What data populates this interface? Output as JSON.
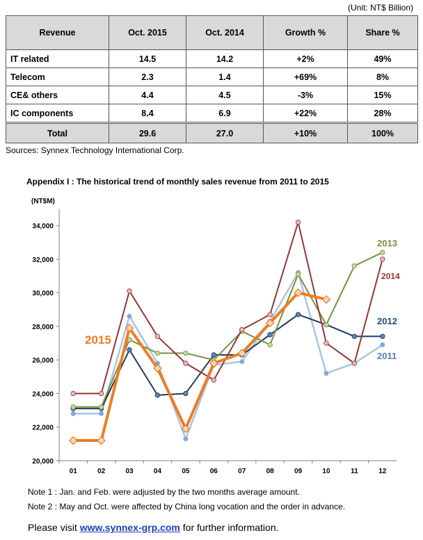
{
  "unit": "(Unit: NT$ Billion)",
  "table": {
    "headers": [
      "Revenue",
      "Oct. 2015",
      "Oct. 2014",
      "Growth %",
      "Share %"
    ],
    "rows": [
      {
        "cat": "IT related",
        "oct2015": "14.5",
        "oct2014": "14.2",
        "growth": "+2%",
        "share": "49%"
      },
      {
        "cat": "Telecom",
        "oct2015": "2.3",
        "oct2014": "1.4",
        "growth": "+69%",
        "share": "8%"
      },
      {
        "cat": "CE& others",
        "oct2015": "4.4",
        "oct2014": "4.5",
        "growth": "-3%",
        "share": "15%"
      },
      {
        "cat": "IC components",
        "oct2015": "8.4",
        "oct2014": "6.9",
        "growth": "+22%",
        "share": "28%"
      }
    ],
    "total": {
      "cat": "Total",
      "oct2015": "29.6",
      "oct2014": "27.0",
      "growth": "+10%",
      "share": "100%"
    }
  },
  "sources": "Sources: Synnex Technology International Corp.",
  "appendix_title": "Appendix I : The historical trend of monthly sales revenue from 2011 to 2015",
  "notes": [
    "Note 1 : Jan. and Feb. were adjusted by the two months average amount.",
    "Note 2 : May and Oct. were affected by China long vocation and the order in advance."
  ],
  "visit": {
    "pre": "Please visit",
    "link": "www.synnex-grp.com",
    "post": "for further information."
  },
  "chart_data": {
    "type": "line",
    "ylabel": "(NT$M)",
    "x": [
      "01",
      "02",
      "03",
      "04",
      "05",
      "06",
      "07",
      "08",
      "09",
      "10",
      "11",
      "12"
    ],
    "ylim": [
      20000,
      35000
    ],
    "yticks": [
      "20,000",
      "22,000",
      "24,000",
      "26,000",
      "28,000",
      "30,000",
      "32,000",
      "34,000"
    ],
    "grid": false,
    "series": [
      {
        "name": "2011",
        "color": "#a9c4e6",
        "marker": "#7ea6d8",
        "width": 2.5,
        "values": [
          22800,
          22800,
          28600,
          25800,
          21300,
          25700,
          25900,
          28300,
          31200,
          25200,
          25800,
          26900
        ]
      },
      {
        "name": "2012",
        "color": "#1f3a5f",
        "marker": "#5b82b8",
        "width": 2,
        "values": [
          23100,
          23100,
          26600,
          23900,
          24000,
          26300,
          26300,
          27500,
          28700,
          28100,
          27400,
          27400
        ]
      },
      {
        "name": "2013",
        "color": "#76923c",
        "marker": "#c4d79b",
        "width": 2,
        "values": [
          23200,
          23200,
          27200,
          26400,
          26400,
          26000,
          27700,
          26900,
          31100,
          28100,
          31600,
          32400
        ]
      },
      {
        "name": "2014",
        "color": "#943634",
        "marker": "#e6b8b7",
        "width": 2,
        "values": [
          24000,
          24000,
          30100,
          27400,
          25800,
          24800,
          27800,
          28700,
          34200,
          27000,
          25800,
          32000
        ]
      },
      {
        "name": "2015",
        "color": "#f07c1e",
        "marker": "#fcd5b4",
        "width": 4,
        "values": [
          21200,
          21200,
          27900,
          25500,
          21900,
          25800,
          26400,
          28200,
          30000,
          29600,
          null,
          null
        ]
      }
    ],
    "labels": [
      {
        "series": "2013",
        "text": "2013",
        "color": "#76923c"
      },
      {
        "series": "2014",
        "text": "2014",
        "color": "#943634"
      },
      {
        "series": "2012",
        "text": "2012",
        "color": "#1f4e79"
      },
      {
        "series": "2011",
        "text": "2011",
        "color": "#4f81bd"
      },
      {
        "series": "2015",
        "text": "2015",
        "color": "#f07c1e"
      }
    ]
  }
}
